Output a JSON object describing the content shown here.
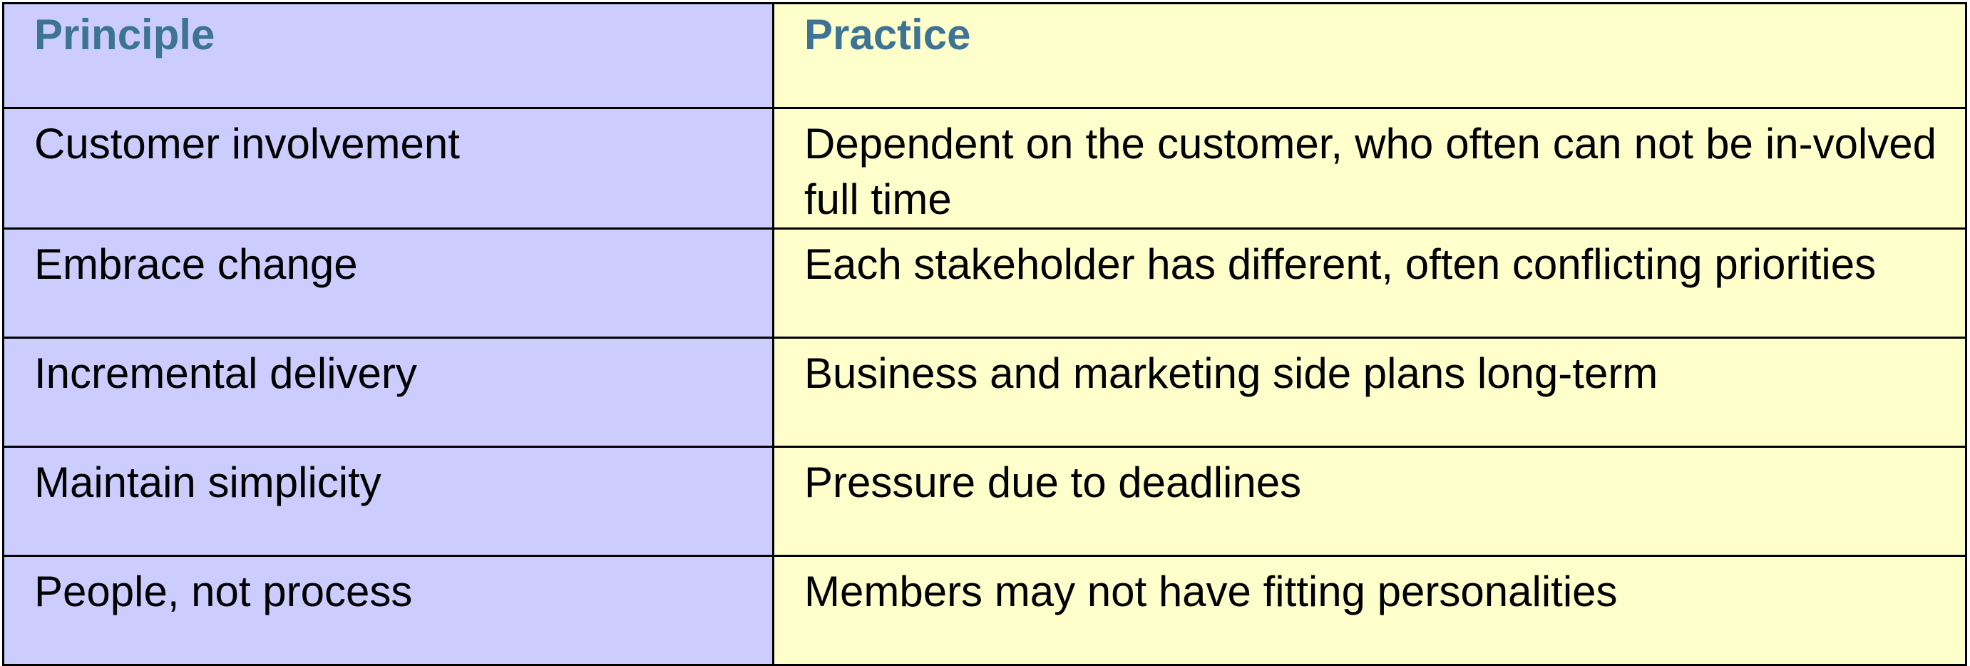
{
  "table": {
    "headers": {
      "principle": "Principle",
      "practice": "Practice"
    },
    "rows": [
      {
        "principle": "Customer involvement",
        "practice": "Dependent on the customer, who often can not be in-volved full time"
      },
      {
        "principle": "Embrace change",
        "practice": "Each stakeholder has different, often conflicting priorities"
      },
      {
        "principle": "Incremental delivery",
        "practice": "Business and marketing side plans long-term"
      },
      {
        "principle": "Maintain simplicity",
        "practice": "Pressure due to deadlines"
      },
      {
        "principle": "People, not process",
        "practice": "Members may not have fitting personalities"
      }
    ]
  },
  "colors": {
    "principle_bg": "#ccccff",
    "practice_bg": "#ffffcc",
    "header_text": "#3d7394",
    "border": "#000000"
  }
}
